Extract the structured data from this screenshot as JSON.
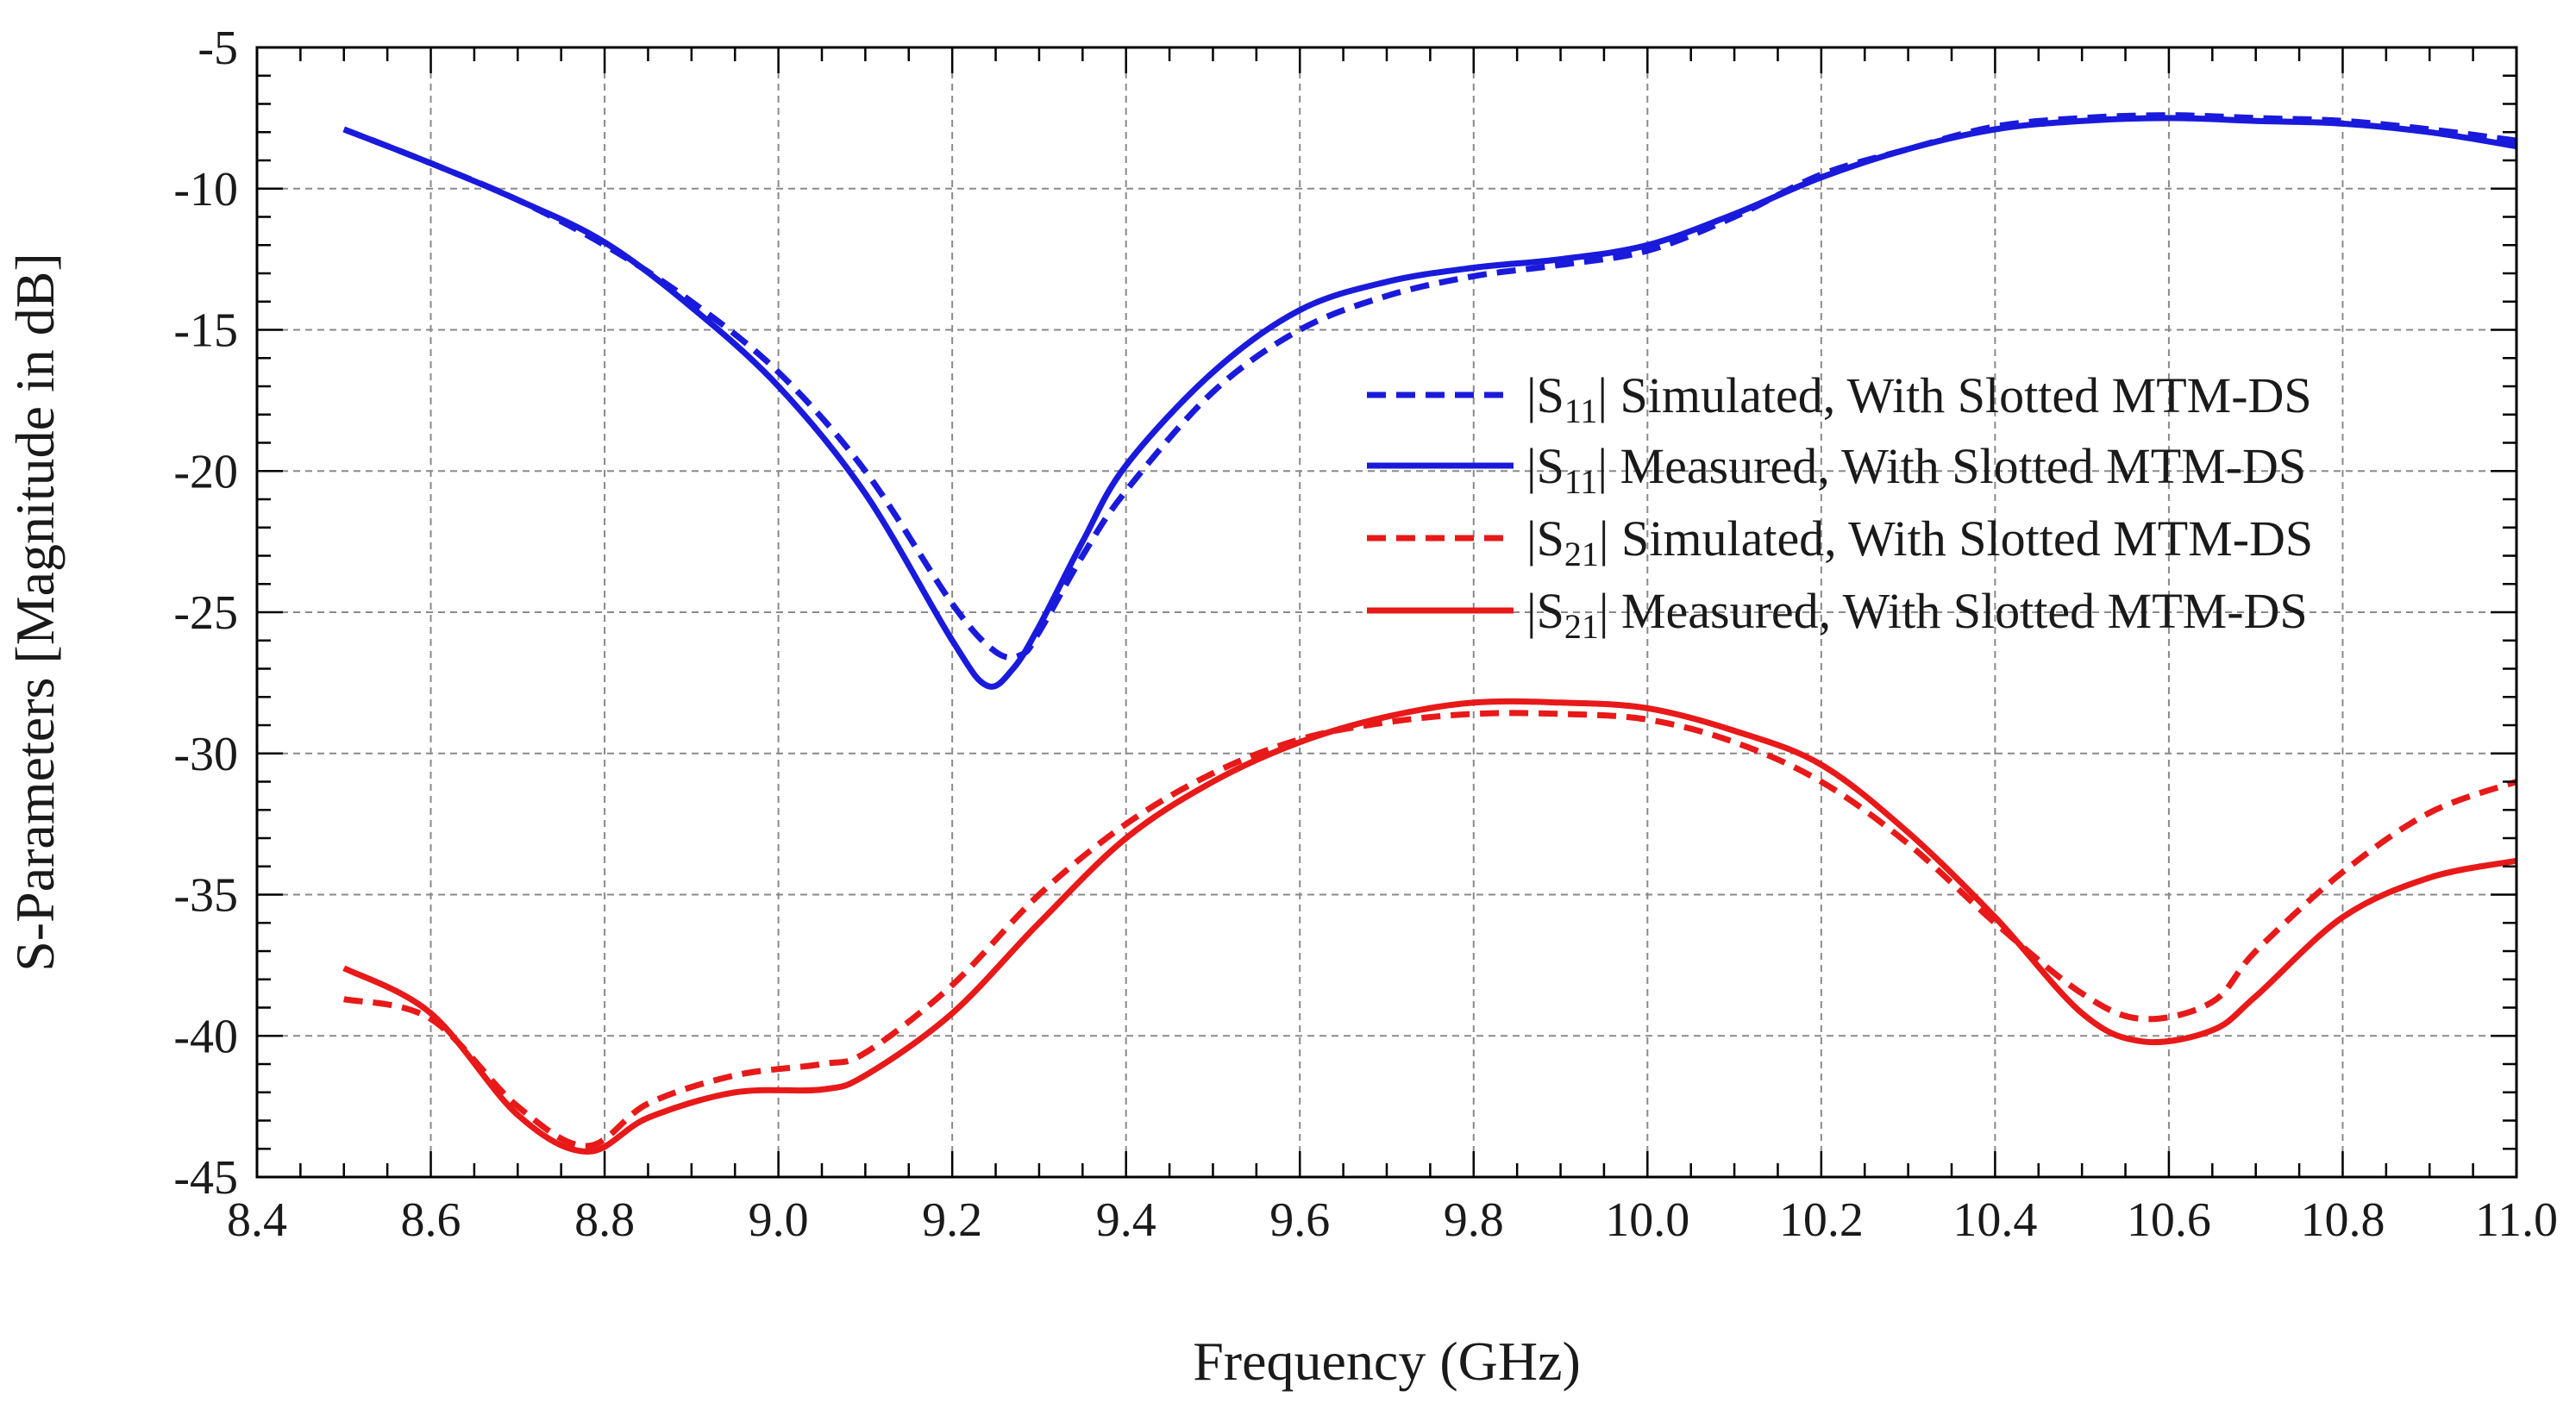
{
  "chart_data": {
    "type": "line",
    "title": "",
    "xlabel": "Frequency (GHz)",
    "ylabel": "S-Parameters [Magnitude in dB]",
    "xlim": [
      8.4,
      11.0
    ],
    "ylim": [
      -45,
      -5
    ],
    "xticks": [
      "8.4",
      "8.6",
      "8.8",
      "9.0",
      "9.2",
      "9.4",
      "9.6",
      "9.8",
      "10.0",
      "10.2",
      "10.4",
      "10.6",
      "10.8",
      "11.0"
    ],
    "yticks": [
      "-5",
      "-10",
      "-15",
      "-20",
      "-25",
      "-30",
      "-35",
      "-40",
      "-45"
    ],
    "grid": true,
    "legend_position": "upper-right",
    "series": [
      {
        "name": "|S11| Simulated, With Slotted MTM-DS",
        "legend_prefix": "|S",
        "legend_sub": "11",
        "legend_suffix": "| Simulated, With Slotted MTM-DS",
        "color": "#1a1adc",
        "style": "dashed",
        "x": [
          8.5,
          8.6,
          8.7,
          8.8,
          8.9,
          9.0,
          9.1,
          9.2,
          9.25,
          9.28,
          9.3,
          9.35,
          9.4,
          9.5,
          9.6,
          9.7,
          9.8,
          9.9,
          10.0,
          10.1,
          10.2,
          10.3,
          10.4,
          10.5,
          10.6,
          10.7,
          10.8,
          10.9,
          11.0
        ],
        "y": [
          -7.9,
          -9.1,
          -10.4,
          -12.0,
          -14.0,
          -16.5,
          -20.0,
          -24.7,
          -26.4,
          -26.5,
          -25.7,
          -23.0,
          -20.7,
          -17.2,
          -15.0,
          -13.8,
          -13.1,
          -12.7,
          -12.2,
          -11.0,
          -9.5,
          -8.6,
          -7.8,
          -7.5,
          -7.4,
          -7.5,
          -7.6,
          -7.9,
          -8.3
        ]
      },
      {
        "name": "|S11| Measured, With Slotted MTM-DS",
        "legend_prefix": "|S",
        "legend_sub": "11",
        "legend_suffix": "| Measured, With Slotted MTM-DS",
        "color": "#1a1adc",
        "style": "solid",
        "x": [
          8.5,
          8.6,
          8.7,
          8.8,
          8.9,
          9.0,
          9.1,
          9.2,
          9.24,
          9.27,
          9.3,
          9.35,
          9.4,
          9.5,
          9.6,
          9.7,
          9.8,
          9.9,
          10.0,
          10.1,
          10.2,
          10.3,
          10.4,
          10.5,
          10.6,
          10.7,
          10.8,
          10.9,
          11.0
        ],
        "y": [
          -7.9,
          -9.1,
          -10.4,
          -11.9,
          -14.2,
          -17.0,
          -20.8,
          -26.0,
          -27.6,
          -27.0,
          -25.5,
          -22.5,
          -19.8,
          -16.5,
          -14.3,
          -13.3,
          -12.8,
          -12.5,
          -12.0,
          -10.9,
          -9.6,
          -8.6,
          -7.9,
          -7.6,
          -7.5,
          -7.6,
          -7.7,
          -8.0,
          -8.5
        ]
      },
      {
        "name": "|S21| Simulated, With Slotted MTM-DS",
        "legend_prefix": "|S",
        "legend_sub": "21",
        "legend_suffix": "| Simulated, With Slotted MTM-DS",
        "color": "#e81919",
        "style": "dashed",
        "x": [
          8.5,
          8.6,
          8.7,
          8.78,
          8.85,
          8.95,
          9.05,
          9.1,
          9.2,
          9.3,
          9.4,
          9.5,
          9.6,
          9.7,
          9.8,
          9.9,
          10.0,
          10.1,
          10.2,
          10.3,
          10.4,
          10.5,
          10.57,
          10.65,
          10.7,
          10.8,
          10.9,
          11.0
        ],
        "y": [
          -38.7,
          -39.4,
          -42.5,
          -43.9,
          -42.4,
          -41.4,
          -41.0,
          -40.6,
          -38.2,
          -35.0,
          -32.5,
          -30.7,
          -29.5,
          -28.9,
          -28.6,
          -28.6,
          -28.8,
          -29.6,
          -31.0,
          -33.2,
          -36.0,
          -38.5,
          -39.4,
          -38.8,
          -37.0,
          -34.2,
          -32.1,
          -31.0
        ]
      },
      {
        "name": "|S21| Measured, With Slotted MTM-DS",
        "legend_prefix": "|S",
        "legend_sub": "21",
        "legend_suffix": "| Measured, With Slotted MTM-DS",
        "color": "#e81919",
        "style": "solid",
        "x": [
          8.5,
          8.6,
          8.7,
          8.78,
          8.85,
          8.95,
          9.05,
          9.1,
          9.2,
          9.3,
          9.4,
          9.5,
          9.6,
          9.7,
          9.8,
          9.9,
          10.0,
          10.1,
          10.2,
          10.3,
          10.4,
          10.5,
          10.57,
          10.65,
          10.7,
          10.8,
          10.9,
          11.0
        ],
        "y": [
          -37.6,
          -39.2,
          -42.8,
          -44.1,
          -42.9,
          -42.0,
          -41.9,
          -41.4,
          -39.2,
          -36.0,
          -33.0,
          -31.0,
          -29.6,
          -28.7,
          -28.2,
          -28.2,
          -28.4,
          -29.2,
          -30.4,
          -32.8,
          -35.8,
          -39.2,
          -40.2,
          -39.8,
          -38.6,
          -35.8,
          -34.4,
          -33.8
        ]
      }
    ]
  }
}
